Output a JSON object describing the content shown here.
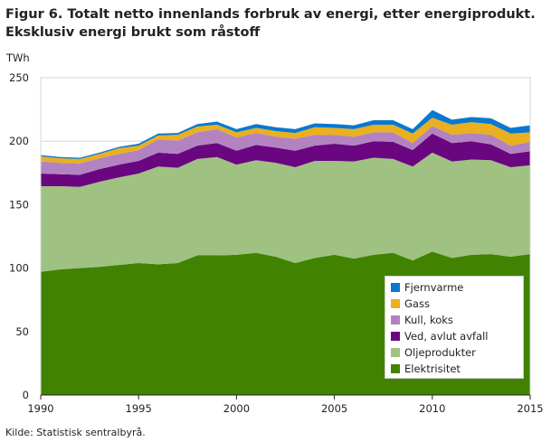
{
  "title": "Figur 6. Totalt netto innenlands forbruk av energi, etter energiprodukt. Eksklusiv energi brukt som råstoff",
  "source": "Kilde: Statistisk sentralbyrå.",
  "chart_data": {
    "type": "area",
    "stacked": true,
    "title": "Figur 6. Totalt netto innenlands forbruk av energi, etter energiprodukt. Eksklusiv energi brukt som råstoff",
    "ylabel": "TWh",
    "xlabel": "",
    "xlim": [
      1990,
      2015
    ],
    "ylim": [
      0,
      250
    ],
    "xticks": [
      1990,
      1995,
      2000,
      2005,
      2010,
      2015
    ],
    "yticks": [
      0,
      50,
      100,
      150,
      200,
      250
    ],
    "grid": true,
    "legend_position": "bottom-right",
    "x": [
      1990,
      1991,
      1992,
      1993,
      1994,
      1995,
      1996,
      1997,
      1998,
      1999,
      2000,
      2001,
      2002,
      2003,
      2004,
      2005,
      2006,
      2007,
      2008,
      2009,
      2010,
      2011,
      2012,
      2013,
      2014,
      2015
    ],
    "series": [
      {
        "name": "Elektrisitet",
        "color": "#418300",
        "values": [
          97,
          99,
          100,
          101,
          102.5,
          104,
          103,
          104,
          110,
          110,
          110.5,
          112,
          109,
          104,
          108,
          110.5,
          107.5,
          110.5,
          112,
          106,
          113,
          108,
          110.5,
          111,
          109,
          111
        ]
      },
      {
        "name": "Oljeprodukter",
        "color": "#9fc282",
        "values": [
          67.5,
          65.5,
          64,
          67,
          69,
          70.5,
          77,
          75,
          76,
          77.5,
          71,
          73,
          74,
          75.5,
          76.5,
          74,
          76.5,
          76.5,
          74,
          74,
          78,
          76,
          75,
          74,
          70.5,
          70
        ]
      },
      {
        "name": "Ved, avlut avfall",
        "color": "#6a0680",
        "values": [
          10,
          9.5,
          9.5,
          10,
          10,
          10,
          11,
          11,
          10.5,
          11,
          11,
          12,
          12,
          13,
          12,
          13.5,
          12.5,
          13,
          13.5,
          13,
          15,
          14.5,
          14.5,
          12.5,
          10.5,
          11
        ]
      },
      {
        "name": "Kull, koks",
        "color": "#b383c1",
        "values": [
          9.5,
          9,
          9,
          8.5,
          8.5,
          8.5,
          10.5,
          10.5,
          10.5,
          11,
          10.5,
          9.5,
          8.5,
          9.5,
          8.5,
          7,
          7,
          7,
          7.5,
          5.5,
          6,
          6.5,
          6.5,
          7.5,
          6.5,
          7.5
        ]
      },
      {
        "name": "Gass",
        "color": "#e9b01f",
        "values": [
          4,
          3.5,
          3.5,
          3.5,
          4.5,
          3.5,
          3,
          4.5,
          4.5,
          3.5,
          4,
          4,
          4.5,
          4.5,
          6,
          5.5,
          6,
          6,
          6,
          7.5,
          6.5,
          8,
          8.5,
          8.5,
          9.5,
          7.5
        ]
      },
      {
        "name": "Fjernvarme",
        "color": "#0a78d0",
        "values": [
          1,
          1,
          1,
          1,
          1,
          1.5,
          1.5,
          1.5,
          2,
          2.5,
          2.5,
          3,
          3,
          3,
          3,
          3,
          3,
          3.5,
          3.5,
          3.5,
          6,
          4,
          4,
          4.5,
          4.5,
          5.5
        ]
      }
    ]
  }
}
